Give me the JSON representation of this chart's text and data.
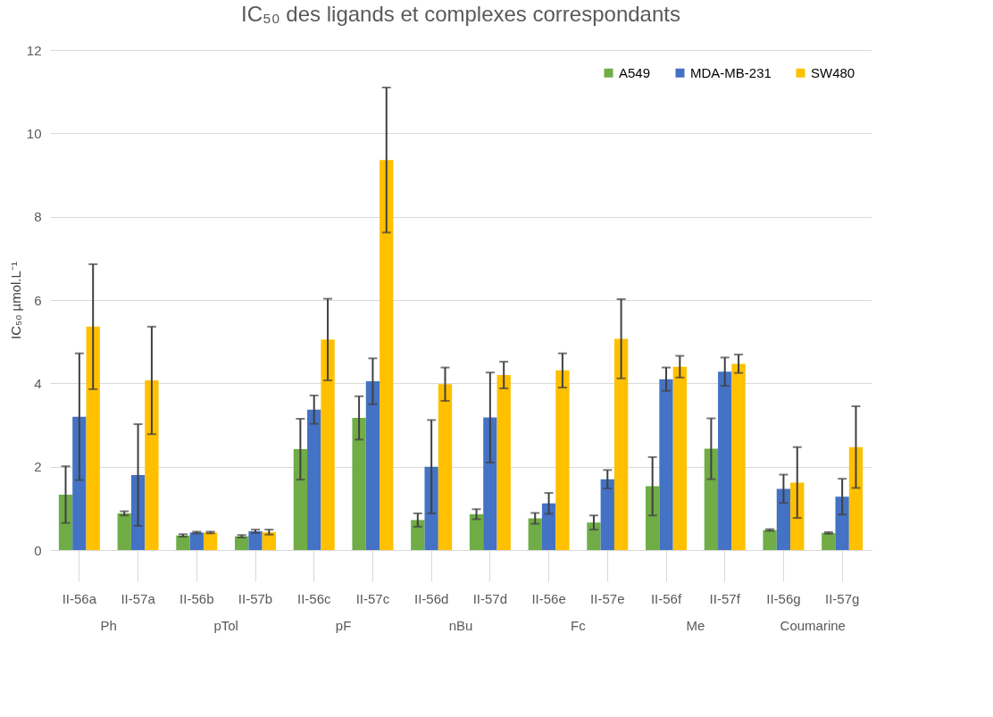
{
  "chart_data": {
    "type": "bar",
    "title": "IC₅₀ des ligands et complexes correspondants",
    "ylabel": "IC₅₀ µmol.L⁻¹",
    "categories": [
      "II-56a",
      "II-57a",
      "II-56b",
      "II-57b",
      "II-56c",
      "II-57c",
      "II-56d",
      "II-57d",
      "II-56e",
      "II-57e",
      "II-56f",
      "II-57f",
      "II-56g",
      "II-57g"
    ],
    "annotations": [
      "Ph",
      "pTol",
      "pF",
      "nBu",
      "Fc",
      "Me",
      "Coumarine"
    ],
    "series": [
      {
        "name": "A549",
        "color": "#70ad47",
        "values": [
          1.33,
          0.88,
          0.35,
          0.33,
          2.42,
          3.17,
          0.72,
          0.86,
          0.76,
          0.66,
          1.53,
          2.43,
          0.48,
          0.41
        ],
        "errors": [
          0.68,
          0.05,
          0.03,
          0.03,
          0.73,
          0.52,
          0.16,
          0.12,
          0.13,
          0.17,
          0.7,
          0.73,
          0.02,
          0.02
        ]
      },
      {
        "name": "MDA-MB-231",
        "color": "#4472c4",
        "values": [
          3.2,
          1.8,
          0.42,
          0.45,
          3.37,
          4.05,
          2.0,
          3.18,
          1.12,
          1.7,
          4.1,
          4.28,
          1.47,
          1.28
        ],
        "errors": [
          1.52,
          1.22,
          0.02,
          0.04,
          0.34,
          0.55,
          1.12,
          1.08,
          0.25,
          0.22,
          0.28,
          0.34,
          0.34,
          0.43
        ]
      },
      {
        "name": "SW480",
        "color": "#ffc000",
        "values": [
          5.36,
          4.07,
          0.42,
          0.43,
          5.05,
          9.36,
          3.98,
          4.2,
          4.31,
          5.07,
          4.4,
          4.47,
          1.62,
          2.47
        ],
        "errors": [
          1.5,
          1.29,
          0.02,
          0.06,
          0.98,
          1.74,
          0.4,
          0.32,
          0.41,
          0.95,
          0.26,
          0.22,
          0.85,
          0.98
        ]
      }
    ],
    "ylim": [
      0,
      12
    ],
    "yticks": [
      0,
      2,
      4,
      6,
      8,
      10,
      12
    ],
    "grid": "y",
    "legend": "top right"
  }
}
